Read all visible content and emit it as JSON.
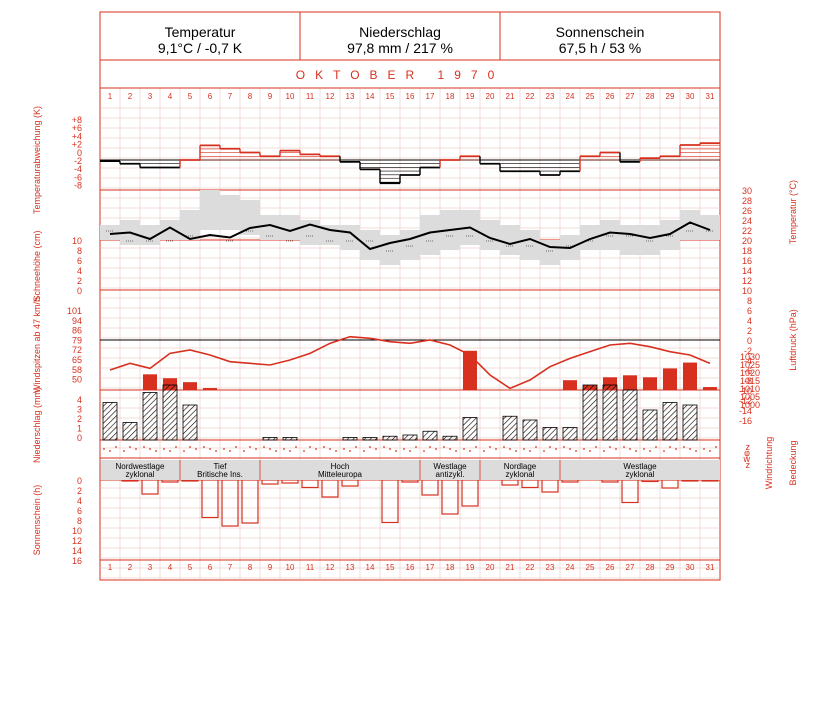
{
  "summary": {
    "temperature": {
      "title": "Temperatur",
      "value": "9,1°C / -0,7 K"
    },
    "precipitation": {
      "title": "Niederschlag",
      "value": "97,8 mm / 217 %"
    },
    "sunshine": {
      "title": "Sonnenschein",
      "value": "67,5 h / 53 %"
    }
  },
  "month_title": "OKTOBER 1970",
  "axis_labels": {
    "temp_anomaly": "Temperaturabweichung (K)",
    "snow": "Schneehöhe (cm)",
    "wind": "Windspitzen ab 47 km/h",
    "precip": "Niederschlag (mm)",
    "sun": "Sonnenschein (h)",
    "temperature": "Temperatur (°C)",
    "pressure": "Luftdruck (hPa)",
    "wind_dir": "Windrichtung",
    "cloud": "Bedeckung"
  },
  "ticks": {
    "temp_anomaly": [
      "+8",
      "+6",
      "+4",
      "+2",
      "0",
      "-2",
      "-4",
      "-6",
      "-8"
    ],
    "snow": [
      "10",
      "8",
      "6",
      "4",
      "2",
      "0"
    ],
    "wind": [
      "101",
      "94",
      "86",
      "79",
      "72",
      "65",
      "58",
      "50"
    ],
    "precip": [
      "4",
      "3",
      "2",
      "1",
      "0"
    ],
    "sun": [
      "0",
      "2",
      "4",
      "6",
      "8",
      "10",
      "12",
      "14",
      "16"
    ],
    "temperature": [
      "30",
      "28",
      "26",
      "24",
      "22",
      "20",
      "18",
      "16",
      "14",
      "12",
      "10",
      "8",
      "6",
      "4",
      "2",
      "0",
      "-2",
      "-4",
      "-6",
      "-8",
      "-10",
      "-12",
      "-14",
      "-16"
    ],
    "pressure": [
      "1030",
      "1025",
      "1020",
      "1015",
      "1010",
      "1005",
      "1000"
    ],
    "dir_legend": [
      "z",
      "φ",
      "w",
      "z"
    ]
  },
  "colors": {
    "accent": "#d7301f",
    "black": "#000000",
    "grid": "#e6bcb4",
    "band": "#dcdcdc"
  },
  "weather_types": [
    {
      "label": "Nordwestlage zyklonal",
      "line1": "Nordwestlage",
      "line2": "zyklonal",
      "from": 1,
      "to": 4
    },
    {
      "label": "Tief Britische Ins.",
      "line1": "Tief",
      "line2": "Britische Ins.",
      "from": 5,
      "to": 8
    },
    {
      "label": "Hoch Mitteleuropa",
      "line1": "Hoch",
      "line2": "Mitteleuropa",
      "from": 9,
      "to": 16
    },
    {
      "label": "Westlage antizykl.",
      "line1": "Westlage",
      "line2": "antizykl.",
      "from": 17,
      "to": 19
    },
    {
      "label": "Nordlage zyklonal",
      "line1": "Nordlage",
      "line2": "zyklonal",
      "from": 20,
      "to": 23
    },
    {
      "label": "Westlage zyklonal",
      "line1": "Westlage",
      "line2": "zyklonal",
      "from": 24,
      "to": 31
    }
  ],
  "chart_data": {
    "type": "line",
    "days": [
      1,
      2,
      3,
      4,
      5,
      6,
      7,
      8,
      9,
      10,
      11,
      12,
      13,
      14,
      15,
      16,
      17,
      18,
      19,
      20,
      21,
      22,
      23,
      24,
      25,
      26,
      27,
      28,
      29,
      30,
      31
    ],
    "temperature_anomaly_K": [
      -0.3,
      -1.0,
      -2.0,
      -2.0,
      0.0,
      3.9,
      3.0,
      2.0,
      1.0,
      2.5,
      1.5,
      1.0,
      -0.5,
      -2.5,
      -6.2,
      -4.0,
      -2.0,
      0.0,
      1.0,
      -1.0,
      -3.0,
      -3.0,
      -4.0,
      -3.0,
      1.0,
      2.0,
      -0.5,
      0.5,
      1.0,
      4.0,
      4.5
    ],
    "mean_temperature_C": [
      11.2,
      11.5,
      10.2,
      12.5,
      10.2,
      11.0,
      10.5,
      12.4,
      13.0,
      11.8,
      13.1,
      12.0,
      11.5,
      8.2,
      9.4,
      10.2,
      11.5,
      12.0,
      12.5,
      10.4,
      9.2,
      10.2,
      8.6,
      8.4,
      10.2,
      11.5,
      11.2,
      10.4,
      11.2,
      13.5,
      12.0
    ],
    "mean_temperature_range_C": [
      [
        10,
        13
      ],
      [
        9,
        14
      ],
      [
        9,
        13
      ],
      [
        10,
        14
      ],
      [
        10,
        16
      ],
      [
        12,
        20
      ],
      [
        12,
        19
      ],
      [
        11,
        18
      ],
      [
        10,
        15
      ],
      [
        10,
        15
      ],
      [
        9,
        14
      ],
      [
        9,
        13
      ],
      [
        8,
        13
      ],
      [
        6,
        12
      ],
      [
        5,
        11
      ],
      [
        6,
        12
      ],
      [
        7,
        15
      ],
      [
        8,
        16
      ],
      [
        9,
        16
      ],
      [
        8,
        14
      ],
      [
        7,
        13
      ],
      [
        6,
        12
      ],
      [
        5,
        10
      ],
      [
        6,
        11
      ],
      [
        8,
        13
      ],
      [
        8,
        14
      ],
      [
        7,
        13
      ],
      [
        7,
        13
      ],
      [
        8,
        14
      ],
      [
        10,
        16
      ],
      [
        10,
        15
      ]
    ],
    "daily_minimum_indicator_C": [
      12,
      10,
      10,
      10,
      11,
      11,
      10,
      12,
      11,
      10,
      11,
      10,
      10,
      10,
      8,
      9,
      10,
      11,
      11,
      10,
      9,
      9,
      8,
      9,
      10,
      11,
      11,
      10,
      11,
      12,
      12
    ],
    "pressure_hPa": [
      1012,
      1016,
      1013,
      1022,
      1024,
      1021,
      1017,
      1016,
      1015,
      1018,
      1022,
      1028,
      1032,
      1031,
      1029,
      1028,
      1030,
      1027,
      1021,
      1009,
      1001,
      1006,
      1014,
      1019,
      1023,
      1027,
      1028,
      1026,
      1023,
      1021,
      1016
    ],
    "wind_gusts_kmh": [
      45,
      45,
      66,
      62,
      58,
      52,
      47,
      47,
      45,
      45,
      45,
      45,
      45,
      45,
      45,
      45,
      45,
      45,
      90,
      45,
      45,
      45,
      45,
      60,
      55,
      63,
      65,
      63,
      72,
      78,
      53
    ],
    "precipitation_mm": [
      3.0,
      1.4,
      3.8,
      5.3,
      2.8,
      0.0,
      0.0,
      0.0,
      0.2,
      0.2,
      0.0,
      0.0,
      0.2,
      0.2,
      0.3,
      0.4,
      0.7,
      0.3,
      1.8,
      0.0,
      1.9,
      1.6,
      1.0,
      1.0,
      5.2,
      4.5,
      4.0,
      2.4,
      3.0,
      2.8,
      0.0
    ],
    "sunshine_h": [
      0.0,
      0.2,
      2.8,
      0.4,
      0.2,
      7.5,
      9.2,
      8.6,
      0.8,
      0.6,
      1.5,
      3.4,
      1.2,
      0.0,
      8.5,
      0.4,
      3.0,
      6.8,
      5.2,
      0.0,
      1.0,
      1.5,
      2.4,
      0.4,
      0.0,
      0.4,
      4.5,
      0.3,
      1.6,
      0.2,
      0.2
    ],
    "ylim_temp_anomaly": [
      -8,
      8
    ],
    "ylim_temperature": [
      -16,
      30
    ],
    "ylim_pressure": [
      1000,
      1030
    ],
    "ylim_wind": [
      50,
      101
    ],
    "ylim_precip": [
      0,
      4
    ],
    "ylim_sun": [
      0,
      16
    ]
  }
}
